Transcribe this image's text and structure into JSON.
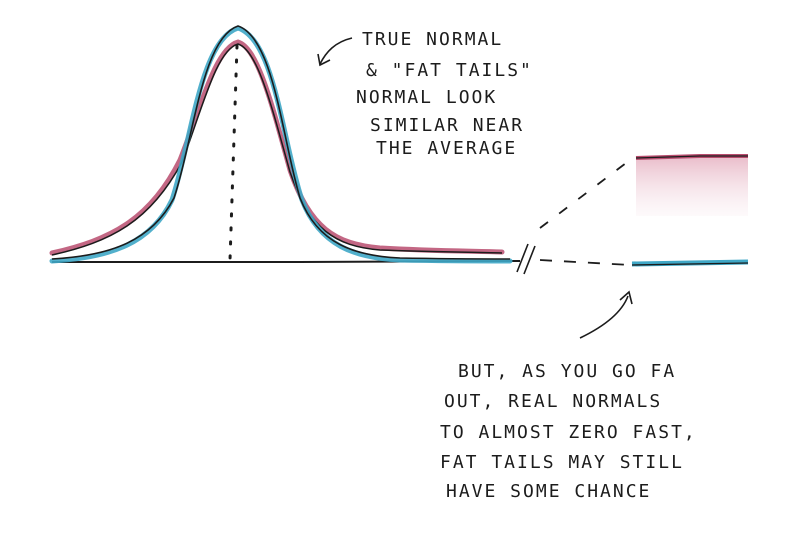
{
  "annotations": {
    "top": [
      "TRUE NORMAL",
      "& \"FAT TAILS\"",
      "NORMAL LOOK",
      "SIMILAR NEAR",
      "THE AVERAGE"
    ],
    "bottom": [
      "BUT, AS YOU GO FA",
      "OUT, REAL NORMALS",
      "TO ALMOST ZERO FAST,",
      "FAT TAILS MAY STILL",
      "HAVE SOME CHANCE"
    ]
  },
  "colors": {
    "ink": "#1c1c1c",
    "true_normal": "#3fa7c6",
    "fat_tails": "#b84c6e",
    "fat_tails_fill": "#e9b7c6"
  },
  "curves": [
    "true-normal",
    "fat-tails-normal"
  ],
  "legend": {},
  "axis_break": "//"
}
